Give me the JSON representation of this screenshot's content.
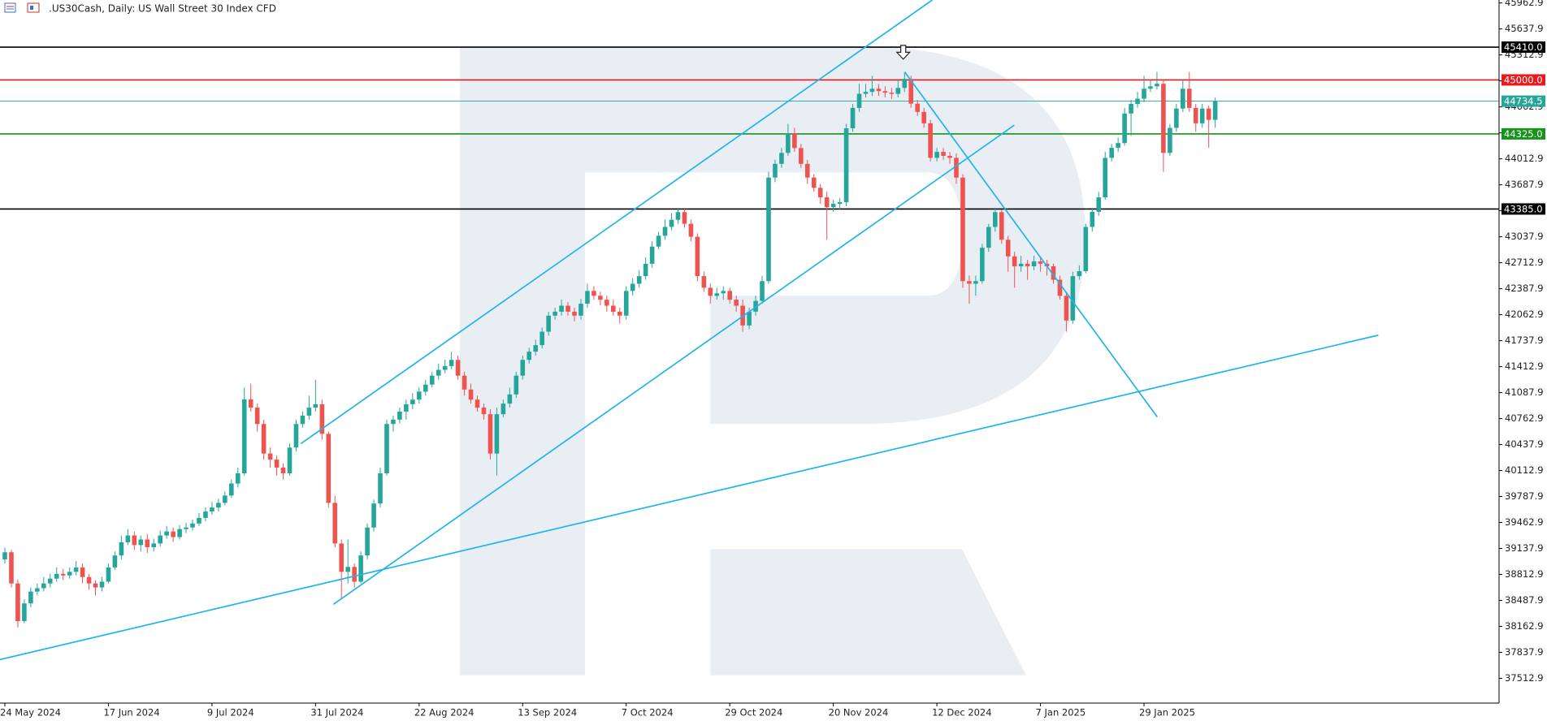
{
  "chart_data": {
    "type": "candlestick",
    "title": ".US30Cash, Daily:  US Wall Street 30 Index CFD",
    "categories": [
      "24 May 2024",
      null,
      null,
      null,
      null,
      null,
      null,
      null,
      null,
      null,
      null,
      null,
      null,
      null,
      null,
      null,
      "17 Jun 2024",
      null,
      null,
      null,
      null,
      null,
      null,
      null,
      null,
      null,
      null,
      null,
      null,
      null,
      null,
      null,
      "9 Jul 2024",
      null,
      null,
      null,
      null,
      null,
      null,
      null,
      null,
      null,
      null,
      null,
      null,
      null,
      null,
      null,
      "31 Jul 2024",
      null,
      null,
      null,
      null,
      null,
      null,
      null,
      null,
      null,
      null,
      null,
      null,
      null,
      null,
      null,
      "22 Aug 2024",
      null,
      null,
      null,
      null,
      null,
      null,
      null,
      null,
      null,
      null,
      null,
      null,
      null,
      null,
      null,
      "13 Sep 2024",
      null,
      null,
      null,
      null,
      null,
      null,
      null,
      null,
      null,
      null,
      null,
      null,
      null,
      null,
      null,
      "7 Oct 2024",
      null,
      null,
      null,
      null,
      null,
      null,
      null,
      null,
      null,
      null,
      null,
      null,
      null,
      null,
      null,
      "29 Oct 2024",
      null,
      null,
      null,
      null,
      null,
      null,
      null,
      null,
      null,
      null,
      null,
      null,
      null,
      null,
      null,
      "20 Nov 2024",
      null,
      null,
      null,
      null,
      null,
      null,
      null,
      null,
      null,
      null,
      null,
      null,
      null,
      null,
      null,
      "12 Dec 2024",
      null,
      null,
      null,
      null,
      null,
      null,
      null,
      null,
      null,
      null,
      null,
      null,
      null,
      null,
      null,
      "7 Jan 2025",
      null,
      null,
      null,
      null,
      null,
      null,
      null,
      null,
      null,
      null,
      null,
      null,
      null,
      null,
      null,
      "29 Jan 2025",
      null,
      null,
      null,
      null,
      null,
      null,
      null,
      null,
      null,
      null,
      null
    ],
    "ohlc": [
      [
        39000,
        39150,
        38950,
        39090
      ],
      [
        39090,
        39120,
        38650,
        38700
      ],
      [
        38700,
        38750,
        38150,
        38228
      ],
      [
        38228,
        38500,
        38200,
        38450
      ],
      [
        38450,
        38650,
        38400,
        38598
      ],
      [
        38598,
        38700,
        38550,
        38640
      ],
      [
        38640,
        38780,
        38600,
        38700
      ],
      [
        38700,
        38820,
        38650,
        38760
      ],
      [
        38760,
        38900,
        38720,
        38820
      ],
      [
        38820,
        38880,
        38740,
        38800
      ],
      [
        38800,
        38900,
        38760,
        38845
      ],
      [
        38845,
        38980,
        38800,
        38900
      ],
      [
        38900,
        38950,
        38700,
        38780
      ],
      [
        38780,
        38820,
        38620,
        38700
      ],
      [
        38700,
        38740,
        38550,
        38650
      ],
      [
        38650,
        38780,
        38600,
        38722
      ],
      [
        38722,
        38950,
        38700,
        38900
      ],
      [
        38900,
        39100,
        38870,
        39050
      ],
      [
        39050,
        39300,
        39000,
        39215
      ],
      [
        39215,
        39380,
        39180,
        39300
      ],
      [
        39300,
        39350,
        39120,
        39180
      ],
      [
        39180,
        39300,
        39100,
        39250
      ],
      [
        39250,
        39320,
        39080,
        39153
      ],
      [
        39153,
        39260,
        39100,
        39200
      ],
      [
        39200,
        39360,
        39160,
        39300
      ],
      [
        39300,
        39420,
        39260,
        39350
      ],
      [
        39350,
        39400,
        39220,
        39280
      ],
      [
        39280,
        39430,
        39250,
        39380
      ],
      [
        39380,
        39460,
        39330,
        39400
      ],
      [
        39400,
        39500,
        39360,
        39450
      ],
      [
        39450,
        39580,
        39420,
        39520
      ],
      [
        39520,
        39650,
        39480,
        39600
      ],
      [
        39600,
        39720,
        39560,
        39650
      ],
      [
        39650,
        39760,
        39600,
        39708
      ],
      [
        39708,
        39850,
        39680,
        39800
      ],
      [
        39800,
        40000,
        39770,
        39950
      ],
      [
        39950,
        40150,
        39900,
        40078
      ],
      [
        40078,
        41150,
        40050,
        41003
      ],
      [
        41003,
        41200,
        40850,
        40900
      ],
      [
        40900,
        40950,
        40600,
        40695
      ],
      [
        40695,
        40750,
        40250,
        40325
      ],
      [
        40325,
        40400,
        40150,
        40250
      ],
      [
        40250,
        40300,
        40050,
        40150
      ],
      [
        40150,
        40200,
        40000,
        40078
      ],
      [
        40078,
        40450,
        40050,
        40400
      ],
      [
        40400,
        40750,
        40350,
        40695
      ],
      [
        40695,
        40850,
        40650,
        40800
      ],
      [
        40800,
        41050,
        40750,
        40900
      ],
      [
        40900,
        41250,
        40850,
        40942
      ],
      [
        40942,
        41000,
        40500,
        40572
      ],
      [
        40572,
        40600,
        39650,
        39708
      ],
      [
        39708,
        39800,
        39150,
        39200
      ],
      [
        39200,
        39250,
        38500,
        38845
      ],
      [
        38845,
        39250,
        38700,
        38907
      ],
      [
        38907,
        38950,
        38650,
        38722
      ],
      [
        38722,
        39100,
        38700,
        39050
      ],
      [
        39050,
        39450,
        39000,
        39400
      ],
      [
        39400,
        39750,
        39350,
        39700
      ],
      [
        39700,
        40150,
        39650,
        40078
      ],
      [
        40078,
        40750,
        40050,
        40695
      ],
      [
        40695,
        40800,
        40600,
        40750
      ],
      [
        40750,
        40900,
        40700,
        40850
      ],
      [
        40850,
        41000,
        40750,
        40942
      ],
      [
        40942,
        41080,
        40880,
        41000
      ],
      [
        41000,
        41150,
        40950,
        41100
      ],
      [
        41100,
        41250,
        41050,
        41188
      ],
      [
        41188,
        41350,
        41150,
        41300
      ],
      [
        41300,
        41450,
        41250,
        41373
      ],
      [
        41373,
        41500,
        41330,
        41420
      ],
      [
        41420,
        41600,
        41380,
        41497
      ],
      [
        41497,
        41550,
        41250,
        41300
      ],
      [
        41300,
        41350,
        41050,
        41126
      ],
      [
        41126,
        41200,
        40950,
        41000
      ],
      [
        41000,
        41050,
        40850,
        40900
      ],
      [
        40900,
        40950,
        40750,
        40818
      ],
      [
        40818,
        40880,
        40250,
        40325
      ],
      [
        40325,
        40900,
        40050,
        40818
      ],
      [
        40818,
        41000,
        40780,
        40950
      ],
      [
        40950,
        41150,
        40900,
        41065
      ],
      [
        41065,
        41350,
        41020,
        41300
      ],
      [
        41300,
        41550,
        41250,
        41497
      ],
      [
        41497,
        41650,
        41450,
        41600
      ],
      [
        41600,
        41750,
        41550,
        41682
      ],
      [
        41682,
        41900,
        41640,
        41850
      ],
      [
        41850,
        42100,
        41800,
        42051
      ],
      [
        42051,
        42150,
        42000,
        42100
      ],
      [
        42100,
        42250,
        42050,
        42175
      ],
      [
        42175,
        42220,
        42050,
        42100
      ],
      [
        42100,
        42150,
        41980,
        42051
      ],
      [
        42051,
        42260,
        42000,
        42200
      ],
      [
        42200,
        42450,
        42150,
        42360
      ],
      [
        42360,
        42420,
        42250,
        42300
      ],
      [
        42300,
        42350,
        42180,
        42250
      ],
      [
        42250,
        42300,
        42100,
        42175
      ],
      [
        42175,
        42250,
        42050,
        42100
      ],
      [
        42100,
        42150,
        41950,
        42051
      ],
      [
        42051,
        42420,
        42000,
        42360
      ],
      [
        42360,
        42520,
        42300,
        42450
      ],
      [
        42450,
        42620,
        42400,
        42545
      ],
      [
        42545,
        42780,
        42500,
        42700
      ],
      [
        42700,
        42980,
        42650,
        42915
      ],
      [
        42915,
        43100,
        42880,
        43050
      ],
      [
        43050,
        43250,
        43000,
        43161
      ],
      [
        43161,
        43330,
        43120,
        43250
      ],
      [
        43250,
        43400,
        43200,
        43346
      ],
      [
        43346,
        43400,
        43150,
        43200
      ],
      [
        43200,
        43250,
        42980,
        43038
      ],
      [
        43038,
        43080,
        42480,
        42545
      ],
      [
        42545,
        42600,
        42350,
        42400
      ],
      [
        42400,
        42450,
        42200,
        42298
      ],
      [
        42298,
        42400,
        42250,
        42330
      ],
      [
        42330,
        42420,
        42250,
        42360
      ],
      [
        42360,
        42400,
        42200,
        42250
      ],
      [
        42250,
        42300,
        42100,
        42175
      ],
      [
        42175,
        42250,
        41850,
        41928
      ],
      [
        41928,
        42150,
        41880,
        42100
      ],
      [
        42100,
        42300,
        42050,
        42236
      ],
      [
        42236,
        42550,
        42200,
        42483
      ],
      [
        42483,
        43850,
        42450,
        43778
      ],
      [
        43778,
        44000,
        43720,
        43950
      ],
      [
        43950,
        44150,
        43900,
        44087
      ],
      [
        44087,
        44450,
        44050,
        44334
      ],
      [
        44334,
        44400,
        44100,
        44148
      ],
      [
        44148,
        44200,
        43900,
        43950
      ],
      [
        43950,
        44000,
        43700,
        43778
      ],
      [
        43778,
        43820,
        43600,
        43650
      ],
      [
        43650,
        43700,
        43450,
        43531
      ],
      [
        43531,
        43600,
        43000,
        43408
      ],
      [
        43408,
        43500,
        43350,
        43450
      ],
      [
        43450,
        43520,
        43380,
        43470
      ],
      [
        43470,
        44450,
        43420,
        44395
      ],
      [
        44395,
        44700,
        44350,
        44650
      ],
      [
        44650,
        44950,
        44600,
        44826
      ],
      [
        44826,
        44950,
        44780,
        44850
      ],
      [
        44850,
        45050,
        44800,
        44890
      ],
      [
        44890,
        44950,
        44800,
        44860
      ],
      [
        44860,
        44920,
        44780,
        44840
      ],
      [
        44840,
        44900,
        44760,
        44826
      ],
      [
        44826,
        45000,
        44780,
        44900
      ],
      [
        44900,
        45100,
        44850,
        45013
      ],
      [
        45013,
        45050,
        44650,
        44703
      ],
      [
        44703,
        44750,
        44550,
        44600
      ],
      [
        44600,
        44650,
        44400,
        44457
      ],
      [
        44457,
        44500,
        43980,
        44025
      ],
      [
        44025,
        44150,
        43980,
        44100
      ],
      [
        44100,
        44150,
        44000,
        44050
      ],
      [
        44050,
        44100,
        43950,
        44025
      ],
      [
        44025,
        44080,
        43700,
        43778
      ],
      [
        43778,
        43820,
        42400,
        42483
      ],
      [
        42483,
        42550,
        42200,
        42450
      ],
      [
        42450,
        42550,
        42300,
        42483
      ],
      [
        42483,
        42950,
        42450,
        42900
      ],
      [
        42900,
        43200,
        42850,
        43161
      ],
      [
        43161,
        43400,
        43100,
        43346
      ],
      [
        43346,
        43380,
        42950,
        43000
      ],
      [
        43000,
        43050,
        42600,
        42792
      ],
      [
        42792,
        42850,
        42400,
        42668
      ],
      [
        42668,
        42800,
        42600,
        42700
      ],
      [
        42700,
        42750,
        42500,
        42668
      ],
      [
        42668,
        42800,
        42620,
        42730
      ],
      [
        42730,
        42780,
        42600,
        42700
      ],
      [
        42700,
        42750,
        42550,
        42668
      ],
      [
        42668,
        42700,
        42450,
        42500
      ],
      [
        42500,
        42550,
        42250,
        42298
      ],
      [
        42298,
        42350,
        41850,
        41990
      ],
      [
        41990,
        42600,
        41950,
        42545
      ],
      [
        42545,
        42680,
        42500,
        42607
      ],
      [
        42607,
        43200,
        42580,
        43161
      ],
      [
        43161,
        43400,
        43100,
        43350
      ],
      [
        43350,
        43600,
        43300,
        43531
      ],
      [
        43531,
        44100,
        43500,
        44025
      ],
      [
        44025,
        44200,
        43980,
        44150
      ],
      [
        44150,
        44280,
        44100,
        44210
      ],
      [
        44210,
        44650,
        44180,
        44580
      ],
      [
        44580,
        44750,
        44300,
        44700
      ],
      [
        44700,
        44850,
        44650,
        44765
      ],
      [
        44765,
        45050,
        44720,
        44890
      ],
      [
        44890,
        45000,
        44850,
        44920
      ],
      [
        44920,
        45100,
        44880,
        44952
      ],
      [
        44952,
        45000,
        43850,
        44087
      ],
      [
        44087,
        44450,
        44050,
        44400
      ],
      [
        44400,
        44700,
        44350,
        44642
      ],
      [
        44642,
        45000,
        44600,
        44890
      ],
      [
        44890,
        45100,
        44600,
        44650
      ],
      [
        44650,
        44700,
        44350,
        44457
      ],
      [
        44457,
        44700,
        44400,
        44642
      ],
      [
        44642,
        44680,
        44150,
        44500
      ],
      [
        44500,
        44780,
        44400,
        44734.5
      ]
    ],
    "up_color": "#26a69a",
    "down_color": "#ef5350",
    "ylim": [
      37203,
      46000
    ],
    "yticks": [
      37512.9,
      37837.9,
      38162.9,
      38487.9,
      38812.9,
      39137.9,
      39462.9,
      39787.9,
      40112.9,
      40437.9,
      40762.9,
      41087.9,
      41412.9,
      41737.9,
      42062.9,
      42387.9,
      42712.9,
      43037.9,
      43362.9,
      43687.9,
      44012.9,
      44337.9,
      44662.9,
      44987.9,
      45312.9,
      45637.9,
      45962.9
    ],
    "levels": [
      {
        "value": 45410,
        "label": "45410.0",
        "color": "#000000"
      },
      {
        "value": 45000,
        "label": "45000.0",
        "color": "#e8191f"
      },
      {
        "value": 44734.5,
        "color": "#26a69a"
      },
      {
        "value": 44325,
        "label": "44325.0",
        "color": "#18931b"
      },
      {
        "value": 43385,
        "label": "43385.0",
        "color": "#000000"
      }
    ]
  }
}
